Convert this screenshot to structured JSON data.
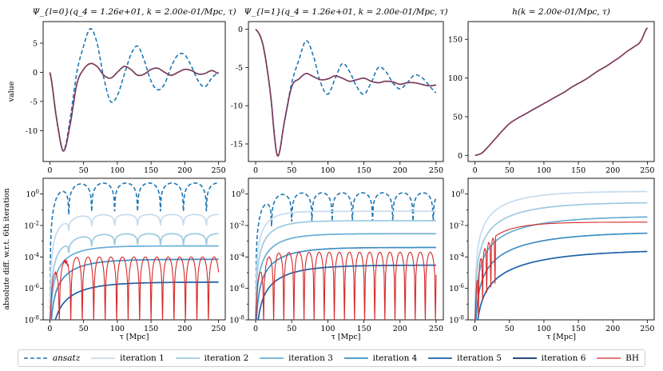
{
  "colors": {
    "ansatz": "#1f77b4",
    "iterations": [
      "#c6dbef",
      "#9ecae1",
      "#6baed6",
      "#3f8fc4",
      "#1d63a8",
      "#08306b"
    ],
    "bh": "#d62728",
    "best": "#7b3a5c"
  },
  "chart_data": [
    {
      "type": "line",
      "title": "Ψ_{l=0}(q_4 = 1.26e+01, k = 2.00e-01/Mpc, τ)",
      "ylabel": "value",
      "xlim": [
        -10,
        260
      ],
      "ylim": [
        -15.3,
        8.7
      ],
      "xticks": [
        0,
        50,
        100,
        150,
        200,
        250
      ],
      "yticks": [
        -10,
        -5,
        0,
        5
      ],
      "x": [
        0,
        10,
        20,
        30,
        40,
        50,
        60,
        70,
        80,
        90,
        100,
        110,
        120,
        130,
        140,
        150,
        160,
        170,
        180,
        190,
        200,
        210,
        220,
        230,
        240,
        250
      ],
      "series": [
        {
          "name": "ansatz",
          "values": [
            0,
            -8,
            -13.5,
            -8,
            0,
            4.5,
            7.5,
            5,
            -1,
            -5,
            -4,
            -0.5,
            3,
            4.5,
            2,
            -1.5,
            -3,
            -2,
            1,
            3,
            3,
            1,
            -1.5,
            -2.5,
            -1,
            0
          ]
        },
        {
          "name": "BH",
          "values": [
            0,
            -8,
            -13.5,
            -9,
            -2,
            0.5,
            1.5,
            1,
            -0.5,
            -1,
            0,
            1,
            0.5,
            -0.5,
            -0.3,
            0.5,
            0.7,
            0,
            -0.5,
            0,
            0.5,
            0.3,
            -0.3,
            -0.2,
            0.3,
            -0.2
          ]
        }
      ]
    },
    {
      "type": "line",
      "title": "Ψ_{l=1}(q_4 = 1.26e+01, k = 2.00e-01/Mpc, τ)",
      "xlim": [
        -10,
        260
      ],
      "ylim": [
        -17.3,
        1.0
      ],
      "xticks": [
        0,
        50,
        100,
        150,
        200,
        250
      ],
      "yticks": [
        -15,
        -10,
        -5,
        0
      ],
      "x": [
        0,
        10,
        20,
        30,
        40,
        50,
        60,
        70,
        80,
        90,
        100,
        110,
        120,
        130,
        140,
        150,
        160,
        170,
        180,
        190,
        200,
        210,
        220,
        230,
        240,
        250
      ],
      "series": [
        {
          "name": "ansatz",
          "values": [
            0,
            -2,
            -8,
            -16.5,
            -12,
            -7,
            -4,
            -1.5,
            -3.5,
            -7,
            -8.5,
            -6.5,
            -4.5,
            -5.5,
            -7.5,
            -8.5,
            -7,
            -5,
            -5.5,
            -7,
            -7.8,
            -7,
            -6,
            -6.3,
            -7.3,
            -8.3
          ]
        },
        {
          "name": "BH",
          "values": [
            0,
            -2,
            -8,
            -16.5,
            -12,
            -7.5,
            -6.5,
            -5.8,
            -6.2,
            -6.6,
            -6.5,
            -6.1,
            -6.4,
            -6.8,
            -6.6,
            -6.4,
            -6.8,
            -7,
            -6.8,
            -6.9,
            -7.2,
            -7,
            -7,
            -7.2,
            -7.4,
            -7.3
          ]
        }
      ]
    },
    {
      "type": "line",
      "title": "h(k = 2.00e-01/Mpc, τ)",
      "xlim": [
        -10,
        260
      ],
      "ylim": [
        -8,
        173
      ],
      "xticks": [
        0,
        50,
        100,
        150,
        200,
        250
      ],
      "yticks": [
        0,
        50,
        100,
        150
      ],
      "x": [
        0,
        10,
        20,
        30,
        40,
        50,
        60,
        70,
        80,
        90,
        100,
        110,
        120,
        130,
        140,
        150,
        160,
        170,
        180,
        190,
        200,
        210,
        220,
        230,
        240,
        250
      ],
      "series": [
        {
          "name": "BH",
          "values": [
            0,
            3,
            12,
            22,
            32,
            41,
            47,
            52,
            57,
            62,
            67,
            72,
            77,
            82,
            88,
            93,
            98,
            104,
            110,
            115,
            121,
            127,
            134,
            140,
            147,
            165
          ]
        }
      ]
    },
    {
      "type": "line",
      "ylabel": "absolute diff. w.r.t. 6th iteration",
      "xlabel": "τ [Mpc]",
      "yscale": "log",
      "ylim": [
        1e-08,
        10
      ],
      "xlim": [
        -10,
        260
      ],
      "xticks": [
        0,
        50,
        100,
        150,
        200,
        250
      ],
      "yticks": [
        "10^0",
        "10^-2",
        "10^-4",
        "10^-6",
        "10^-8"
      ],
      "plateaus": {
        "ansatz": 5,
        "iteration 1": 0.05,
        "iteration 2": 0.003,
        "iteration 3": 0.0005,
        "iteration 4": 7e-05,
        "iteration 5": 2.5e-06,
        "BH": 0.0001
      }
    },
    {
      "type": "line",
      "xlabel": "τ [Mpc]",
      "yscale": "log",
      "ylim": [
        1e-08,
        10
      ],
      "xlim": [
        -10,
        260
      ],
      "xticks": [
        0,
        50,
        100,
        150,
        200,
        250
      ],
      "yticks": [
        "10^0",
        "10^-2",
        "10^-4",
        "10^-6",
        "10^-8"
      ],
      "plateaus": {
        "ansatz": 1.2,
        "iteration 1": 0.08,
        "iteration 2": 0.02,
        "iteration 3": 0.003,
        "iteration 4": 0.0004,
        "iteration 5": 3e-05,
        "BH": 0.0002
      }
    },
    {
      "type": "line",
      "xlabel": "τ [Mpc]",
      "yscale": "log",
      "ylim": [
        1e-08,
        10
      ],
      "xlim": [
        -10,
        260
      ],
      "xticks": [
        0,
        50,
        100,
        150,
        200,
        250
      ],
      "yticks": [
        "10^0",
        "10^-2",
        "10^-4",
        "10^-6",
        "10^-8"
      ],
      "finals": {
        "iteration 1": 1.5,
        "iteration 2": 0.3,
        "iteration 3": 0.04,
        "iteration 4": 0.004,
        "iteration 5": 0.0003,
        "BH": 0.015
      }
    }
  ],
  "legend": {
    "items": [
      {
        "label": "ansatz",
        "style": "dashed",
        "italic": true
      },
      {
        "label": "iteration 1"
      },
      {
        "label": "iteration 2"
      },
      {
        "label": "iteration 3"
      },
      {
        "label": "iteration 4"
      },
      {
        "label": "iteration 5"
      },
      {
        "label": "iteration 6"
      },
      {
        "label": "BH"
      }
    ]
  }
}
